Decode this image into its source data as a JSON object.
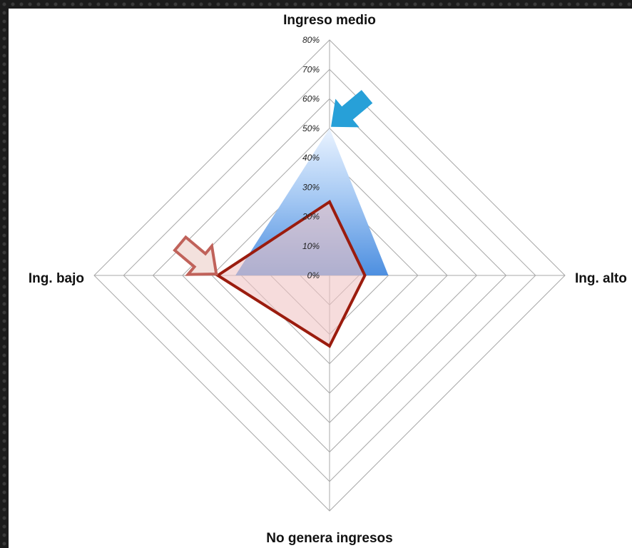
{
  "chart_data": {
    "type": "radar",
    "axes": [
      "Ingreso medio",
      "Ing. alto",
      "No genera ingresos",
      "Ing. bajo"
    ],
    "tick_labels": [
      "0%",
      "10%",
      "20%",
      "30%",
      "40%",
      "50%",
      "60%",
      "70%",
      "80%"
    ],
    "rlim": [
      0,
      80
    ],
    "grid": true,
    "series": [
      {
        "values": [
          50,
          20,
          0,
          32
        ],
        "color": "#6fa3e0",
        "fill": "gradient-blue"
      },
      {
        "values": [
          25,
          12,
          24,
          38
        ],
        "color": "#9b1c0e",
        "fill": "#f0c4c4"
      }
    ],
    "annotations": [
      {
        "type": "arrow",
        "target": "series-0-ingreso-medio",
        "color": "#27a0d8"
      },
      {
        "type": "arrow",
        "target": "series-1-ing-bajo",
        "color": "#f3e1dd",
        "stroke": "#c0625a"
      }
    ]
  }
}
